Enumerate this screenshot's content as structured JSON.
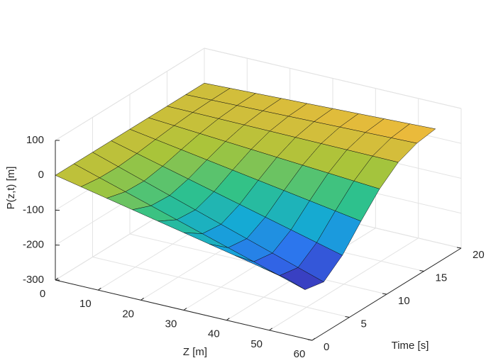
{
  "chart_data": {
    "type": "surface",
    "xlabel": "Z [m]",
    "ylabel": "Time [s]",
    "zlabel": "P(z,t) [m]",
    "x": [
      0,
      6,
      12,
      18,
      24,
      30,
      36,
      42,
      48,
      54
    ],
    "y": [
      0,
      2.5,
      5,
      7.5,
      10,
      12.5,
      15,
      17.5,
      20
    ],
    "values": [
      [
        0,
        -15.6,
        -31.2,
        -46.8,
        -62.4,
        -78,
        -93.6,
        -109.2,
        -124.8,
        -140.4
      ],
      [
        0,
        -22.8,
        -45.6,
        -68.4,
        -91.2,
        -114,
        -136.8,
        -159.6,
        -182.4,
        -205.2
      ],
      [
        0,
        -24,
        -48,
        -72,
        -96,
        -120,
        -144,
        -168,
        -192,
        -216
      ],
      [
        0,
        -19.2,
        -38.4,
        -57.6,
        -76.8,
        -96,
        -115.2,
        -134.4,
        -153.6,
        -172.8
      ],
      [
        0,
        -12,
        -24,
        -36,
        -48,
        -60,
        -72,
        -84,
        -96,
        -108
      ],
      [
        0,
        -5.4,
        -10.8,
        -16.2,
        -21.6,
        -27,
        -32.4,
        -37.8,
        -43.2,
        -48.6
      ],
      [
        0,
        -0.6,
        -1.2,
        -1.8,
        -2.4,
        -3,
        -3.6,
        -4.2,
        -4.8,
        -5.4
      ],
      [
        0,
        1.8,
        3.6,
        5.4,
        7.2,
        9,
        10.8,
        12.6,
        14.4,
        16.2
      ],
      [
        0,
        2.7,
        5.4,
        8.1,
        10.8,
        13.5,
        16.2,
        18.9,
        21.6,
        24.3
      ]
    ],
    "xlim": [
      0,
      60
    ],
    "xticks": [
      0,
      10,
      20,
      30,
      40,
      50,
      60
    ],
    "ylim": [
      0,
      20
    ],
    "yticks": [
      0,
      5,
      10,
      15,
      20
    ],
    "zlim": [
      -300,
      100
    ],
    "zticks": [
      -300,
      -200,
      -100,
      0,
      100
    ],
    "grid": true,
    "colormap": [
      "#3e26a8",
      "#2f6ff0",
      "#14a9d6",
      "#2fc28a",
      "#a8c43a",
      "#f2b93b"
    ]
  }
}
